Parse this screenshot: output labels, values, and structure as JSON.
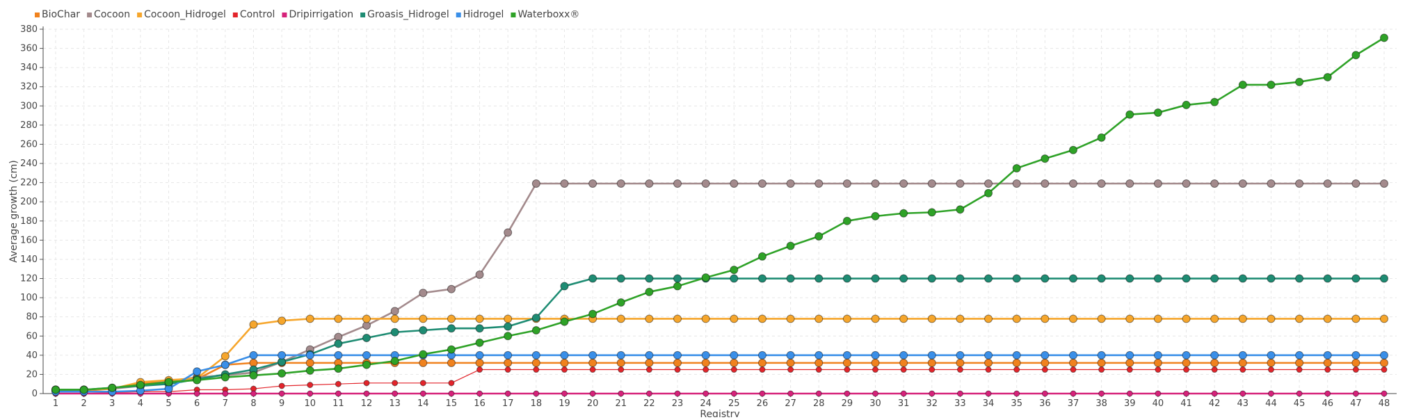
{
  "chart_data": {
    "type": "line",
    "title": "",
    "xlabel": "Registry",
    "ylabel": "Average growth (cm)",
    "x": [
      1,
      2,
      3,
      4,
      5,
      6,
      7,
      8,
      9,
      10,
      11,
      12,
      13,
      14,
      15,
      16,
      17,
      18,
      19,
      20,
      21,
      22,
      23,
      24,
      25,
      26,
      27,
      28,
      29,
      30,
      31,
      32,
      33,
      34,
      35,
      36,
      37,
      38,
      39,
      40,
      41,
      42,
      43,
      44,
      45,
      46,
      47,
      48
    ],
    "ylim": [
      0,
      380
    ],
    "yticks": [
      0,
      20,
      40,
      60,
      80,
      100,
      120,
      140,
      160,
      180,
      200,
      220,
      240,
      260,
      280,
      300,
      320,
      340,
      360,
      380
    ],
    "grid": true,
    "legend_position": "top-left",
    "series": [
      {
        "name": "BioChar",
        "color": "#f0821e",
        "values": [
          3,
          3,
          5,
          11,
          12,
          15,
          30,
          32,
          32,
          32,
          32,
          32,
          32,
          32,
          32,
          32,
          32,
          32,
          32,
          32,
          32,
          32,
          32,
          32,
          32,
          32,
          32,
          32,
          32,
          32,
          32,
          32,
          32,
          32,
          32,
          32,
          32,
          32,
          32,
          32,
          32,
          32,
          32,
          32,
          32,
          32,
          32,
          32
        ]
      },
      {
        "name": "Cocoon",
        "color": "#a38a8c",
        "values": [
          4,
          4,
          5,
          8,
          13,
          17,
          19,
          22,
          33,
          46,
          59,
          71,
          86,
          105,
          109,
          124,
          168,
          219,
          219,
          219,
          219,
          219,
          219,
          219,
          219,
          219,
          219,
          219,
          219,
          219,
          219,
          219,
          219,
          219,
          219,
          219,
          219,
          219,
          219,
          219,
          219,
          219,
          219,
          219,
          219,
          219,
          219,
          219
        ]
      },
      {
        "name": "Cocoon_Hidrogel",
        "color": "#f6a62c",
        "values": [
          4,
          4,
          5,
          12,
          14,
          16,
          39,
          72,
          76,
          78,
          78,
          78,
          78,
          78,
          78,
          78,
          78,
          78,
          78,
          78,
          78,
          78,
          78,
          78,
          78,
          78,
          78,
          78,
          78,
          78,
          78,
          78,
          78,
          78,
          78,
          78,
          78,
          78,
          78,
          78,
          78,
          78,
          78,
          78,
          78,
          78,
          78,
          78
        ]
      },
      {
        "name": "Control",
        "color": "#e3242b",
        "values": [
          0,
          0,
          1,
          2,
          2,
          4,
          4,
          5,
          8,
          9,
          10,
          11,
          11,
          11,
          11,
          25,
          25,
          25,
          25,
          25,
          25,
          25,
          25,
          25,
          25,
          25,
          25,
          25,
          25,
          25,
          25,
          25,
          25,
          25,
          25,
          25,
          25,
          25,
          25,
          25,
          25,
          25,
          25,
          25,
          25,
          25,
          25,
          25
        ]
      },
      {
        "name": "Dripirrigation",
        "color": "#d6227a",
        "values": [
          0,
          0,
          0,
          0,
          0,
          0,
          0,
          0,
          0,
          0,
          0,
          0,
          0,
          0,
          0,
          0,
          0,
          0,
          0,
          0,
          0,
          0,
          0,
          0,
          0,
          0,
          0,
          0,
          0,
          0,
          0,
          0,
          0,
          0,
          0,
          0,
          0,
          0,
          0,
          0,
          0,
          0,
          0,
          0,
          0,
          0,
          0,
          0
        ]
      },
      {
        "name": "Groasis_Hidrogel",
        "color": "#1e8c73",
        "values": [
          4,
          4,
          6,
          8,
          10,
          15,
          20,
          25,
          33,
          41,
          52,
          58,
          64,
          66,
          68,
          68,
          70,
          79,
          112,
          120,
          120,
          120,
          120,
          120,
          120,
          120,
          120,
          120,
          120,
          120,
          120,
          120,
          120,
          120,
          120,
          120,
          120,
          120,
          120,
          120,
          120,
          120,
          120,
          120,
          120,
          120,
          120,
          120
        ]
      },
      {
        "name": "Hidrogel",
        "color": "#3a8fe8",
        "values": [
          2,
          2,
          2,
          3,
          5,
          23,
          30,
          40,
          40,
          40,
          40,
          40,
          40,
          40,
          40,
          40,
          40,
          40,
          40,
          40,
          40,
          40,
          40,
          40,
          40,
          40,
          40,
          40,
          40,
          40,
          40,
          40,
          40,
          40,
          40,
          40,
          40,
          40,
          40,
          40,
          40,
          40,
          40,
          40,
          40,
          40,
          40,
          40
        ]
      },
      {
        "name": "Waterboxx®",
        "color": "#2ea227",
        "values": [
          4,
          4,
          6,
          9,
          12,
          14,
          17,
          19,
          21,
          24,
          26,
          30,
          34,
          41,
          46,
          53,
          60,
          66,
          75,
          83,
          95,
          106,
          112,
          121,
          129,
          143,
          154,
          164,
          180,
          185,
          188,
          189,
          192,
          209,
          235,
          245,
          254,
          267,
          291,
          293,
          301,
          304,
          322,
          322,
          325,
          330,
          353,
          371
        ]
      }
    ]
  }
}
